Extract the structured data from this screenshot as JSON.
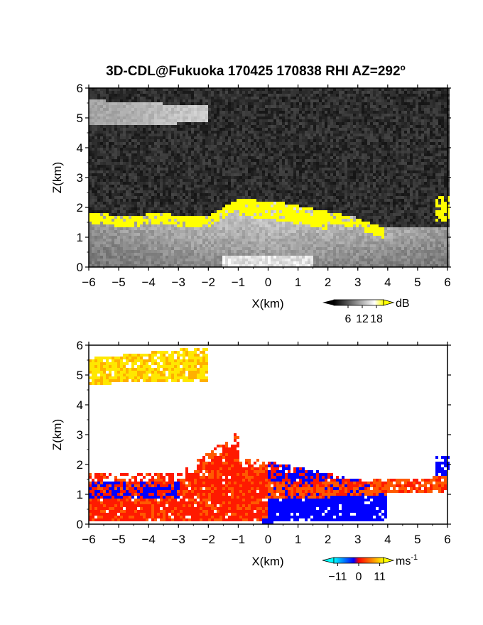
{
  "title": "3D-CDL@Fukuoka 170425 170838 RHI AZ=292",
  "title_superscript": "o",
  "chart_data": [
    {
      "type": "heatmap",
      "name": "backscatter-intensity",
      "xlabel": "X(km)",
      "ylabel": "Z(km)",
      "xlim": [
        -6,
        6
      ],
      "ylim": [
        0,
        6
      ],
      "xticks": [
        "-6",
        "-5",
        "-4",
        "-3",
        "-2",
        "-1",
        "0",
        "1",
        "2",
        "3",
        "4",
        "5",
        "6"
      ],
      "yticks": [
        "0",
        "1",
        "2",
        "3",
        "4",
        "5",
        "6"
      ],
      "colorbar": {
        "unit": "dB",
        "ticks": [
          "6",
          "12",
          "18"
        ],
        "tick_values": [
          6,
          12,
          18
        ],
        "range": [
          0,
          21
        ],
        "colors": [
          "#000000",
          "#ffffff",
          "#ffff00"
        ]
      },
      "features": [
        {
          "label": "high-intensity layer (>18 dB)",
          "x_range": [
            -6,
            4
          ],
          "z_range": [
            1.3,
            2.5
          ]
        },
        {
          "label": "elevated aerosol layer",
          "x_range": [
            -6,
            -2
          ],
          "z_range": [
            4.8,
            5.6
          ]
        },
        {
          "label": "high-intensity patch",
          "x_range": [
            5.6,
            6
          ],
          "z_range": [
            1.6,
            2.4
          ]
        }
      ]
    },
    {
      "type": "heatmap",
      "name": "doppler-velocity",
      "xlabel": "X(km)",
      "ylabel": "Z(km)",
      "xlim": [
        -6,
        6
      ],
      "ylim": [
        0,
        6
      ],
      "xticks": [
        "-6",
        "-5",
        "-4",
        "-3",
        "-2",
        "-1",
        "0",
        "1",
        "2",
        "3",
        "4",
        "5",
        "6"
      ],
      "yticks": [
        "0",
        "1",
        "2",
        "3",
        "4",
        "5",
        "6"
      ],
      "colorbar": {
        "unit": "ms",
        "unit_superscript": "-1",
        "ticks": [
          "−11",
          "0",
          "11"
        ],
        "tick_values": [
          -11,
          0,
          11
        ],
        "range": [
          -13,
          13
        ],
        "colors": [
          "#00ffff",
          "#0000ff",
          "#ff0000",
          "#ffff00"
        ]
      },
      "features": [
        {
          "label": "receding (red) flow",
          "x_range": [
            -6,
            0
          ],
          "z_range": [
            0,
            3
          ]
        },
        {
          "label": "approaching (blue) flow",
          "x_range": [
            0,
            4
          ],
          "z_range": [
            0,
            2.2
          ]
        },
        {
          "label": "upper layer (yellow-orange)",
          "x_range": [
            -6,
            -2
          ],
          "z_range": [
            4.7,
            6
          ]
        }
      ]
    }
  ]
}
